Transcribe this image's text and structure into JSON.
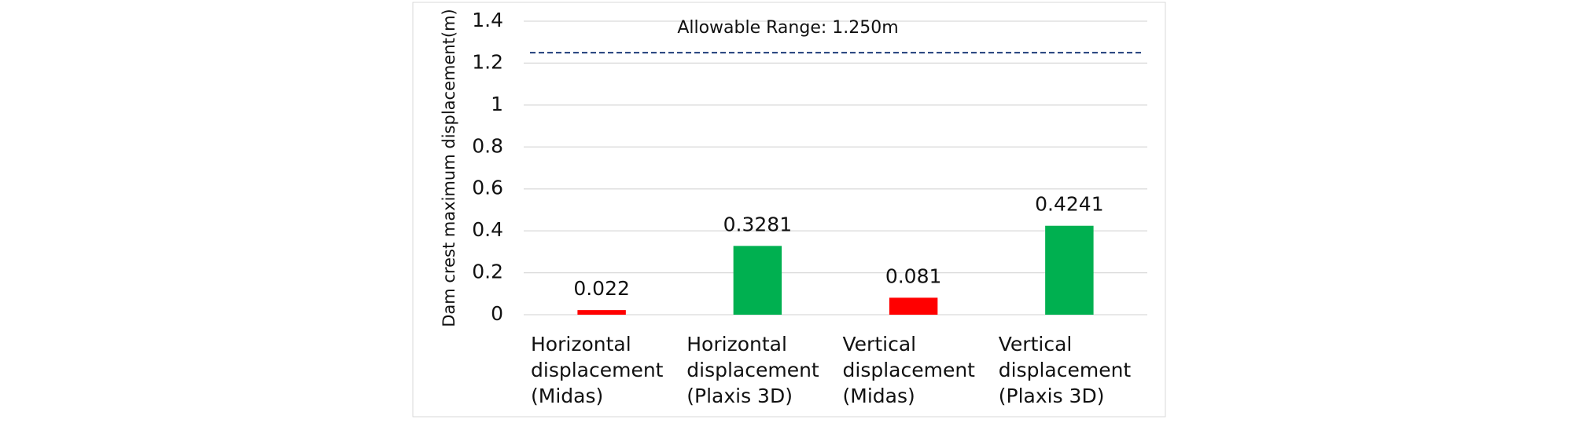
{
  "chart_data": {
    "type": "bar",
    "y_axis_label": "Dam crest maximum displacement(m)",
    "categories": [
      "Horizontal displacement (Midas)",
      "Horizontal displacement (Plaxis 3D)",
      "Vertical displacement (Midas)",
      "Vertical displacement (Plaxis 3D)"
    ],
    "values": [
      0.022,
      0.3281,
      0.081,
      0.4241
    ],
    "colors": [
      "#ff0000",
      "#00b050",
      "#ff0000",
      "#00b050"
    ],
    "ylim": [
      0,
      1.4
    ],
    "yticks": [
      0,
      0.2,
      0.4,
      0.6,
      0.8,
      1,
      1.2,
      1.4
    ],
    "grid": true,
    "reference_line": {
      "value": 1.25,
      "label": "Allowable Range: 1.250m",
      "color": "#1f3d7a"
    }
  }
}
